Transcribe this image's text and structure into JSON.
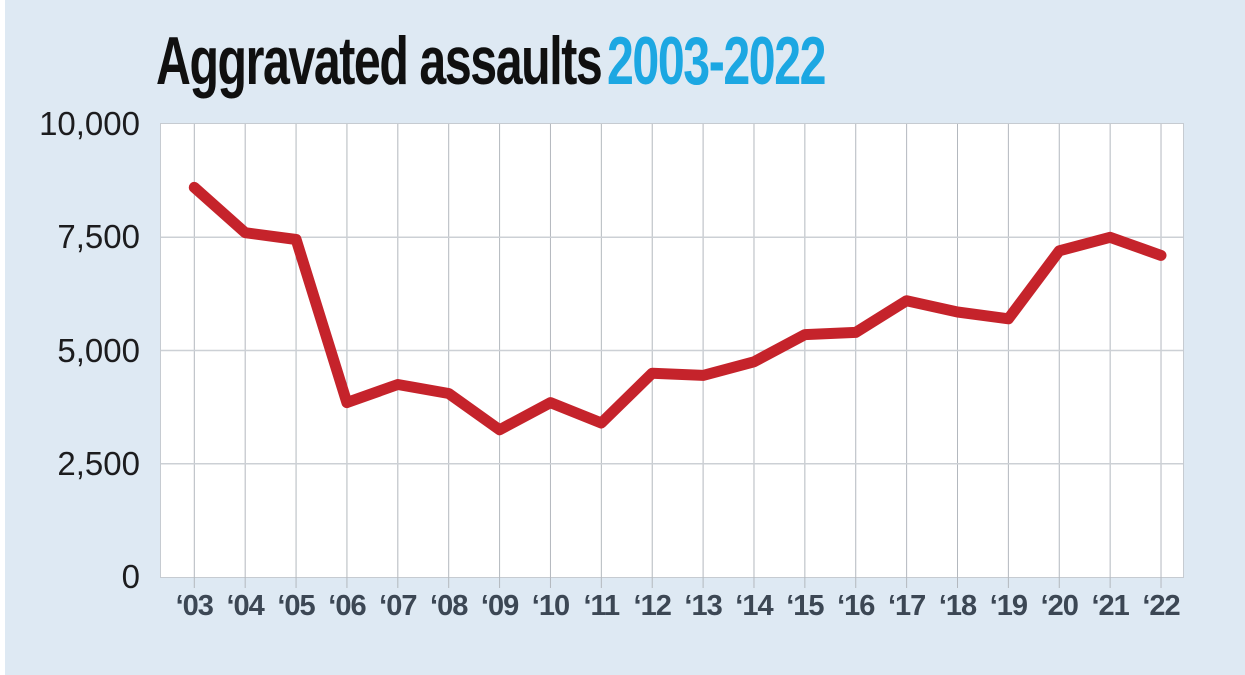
{
  "title": {
    "main": "Aggravated assaults",
    "period": "2003-2022"
  },
  "colors": {
    "page_bg": "#dee9f3",
    "plot_bg": "#ffffff",
    "title_main": "#101010",
    "title_accent": "#1ca7e2",
    "y_label": "#1c1c1e",
    "x_label": "#3c4754"
  },
  "chart_data": {
    "type": "line",
    "title_main": "Aggravated assaults",
    "title_period": "2003-2022",
    "x": [
      "‘03",
      "‘04",
      "‘05",
      "‘06",
      "‘07",
      "‘08",
      "‘09",
      "‘10",
      "‘11",
      "‘12",
      "‘13",
      "‘14",
      "‘15",
      "‘16",
      "‘17",
      "‘18",
      "‘19",
      "‘20",
      "‘21",
      "‘22"
    ],
    "values": [
      8600,
      7600,
      7450,
      3850,
      4250,
      4050,
      3250,
      3850,
      3400,
      4500,
      4450,
      4750,
      5350,
      5400,
      6100,
      5850,
      5700,
      7200,
      7500,
      7100
    ],
    "xlabel": "",
    "ylabel": "",
    "ylim": [
      0,
      10000
    ],
    "yticks": [
      {
        "label": "10,000",
        "value": 10000
      },
      {
        "label": "7,500",
        "value": 7500
      },
      {
        "label": "5,000",
        "value": 5000
      },
      {
        "label": "2,500",
        "value": 2500
      },
      {
        "label": "0",
        "value": 0
      }
    ],
    "grid": "vertical and horizontal",
    "legend": "none",
    "line_color": "#c5232b",
    "line_width": 11,
    "vgrid_color": "#b3b8be",
    "hgrid_color": "#ccd0d5"
  }
}
